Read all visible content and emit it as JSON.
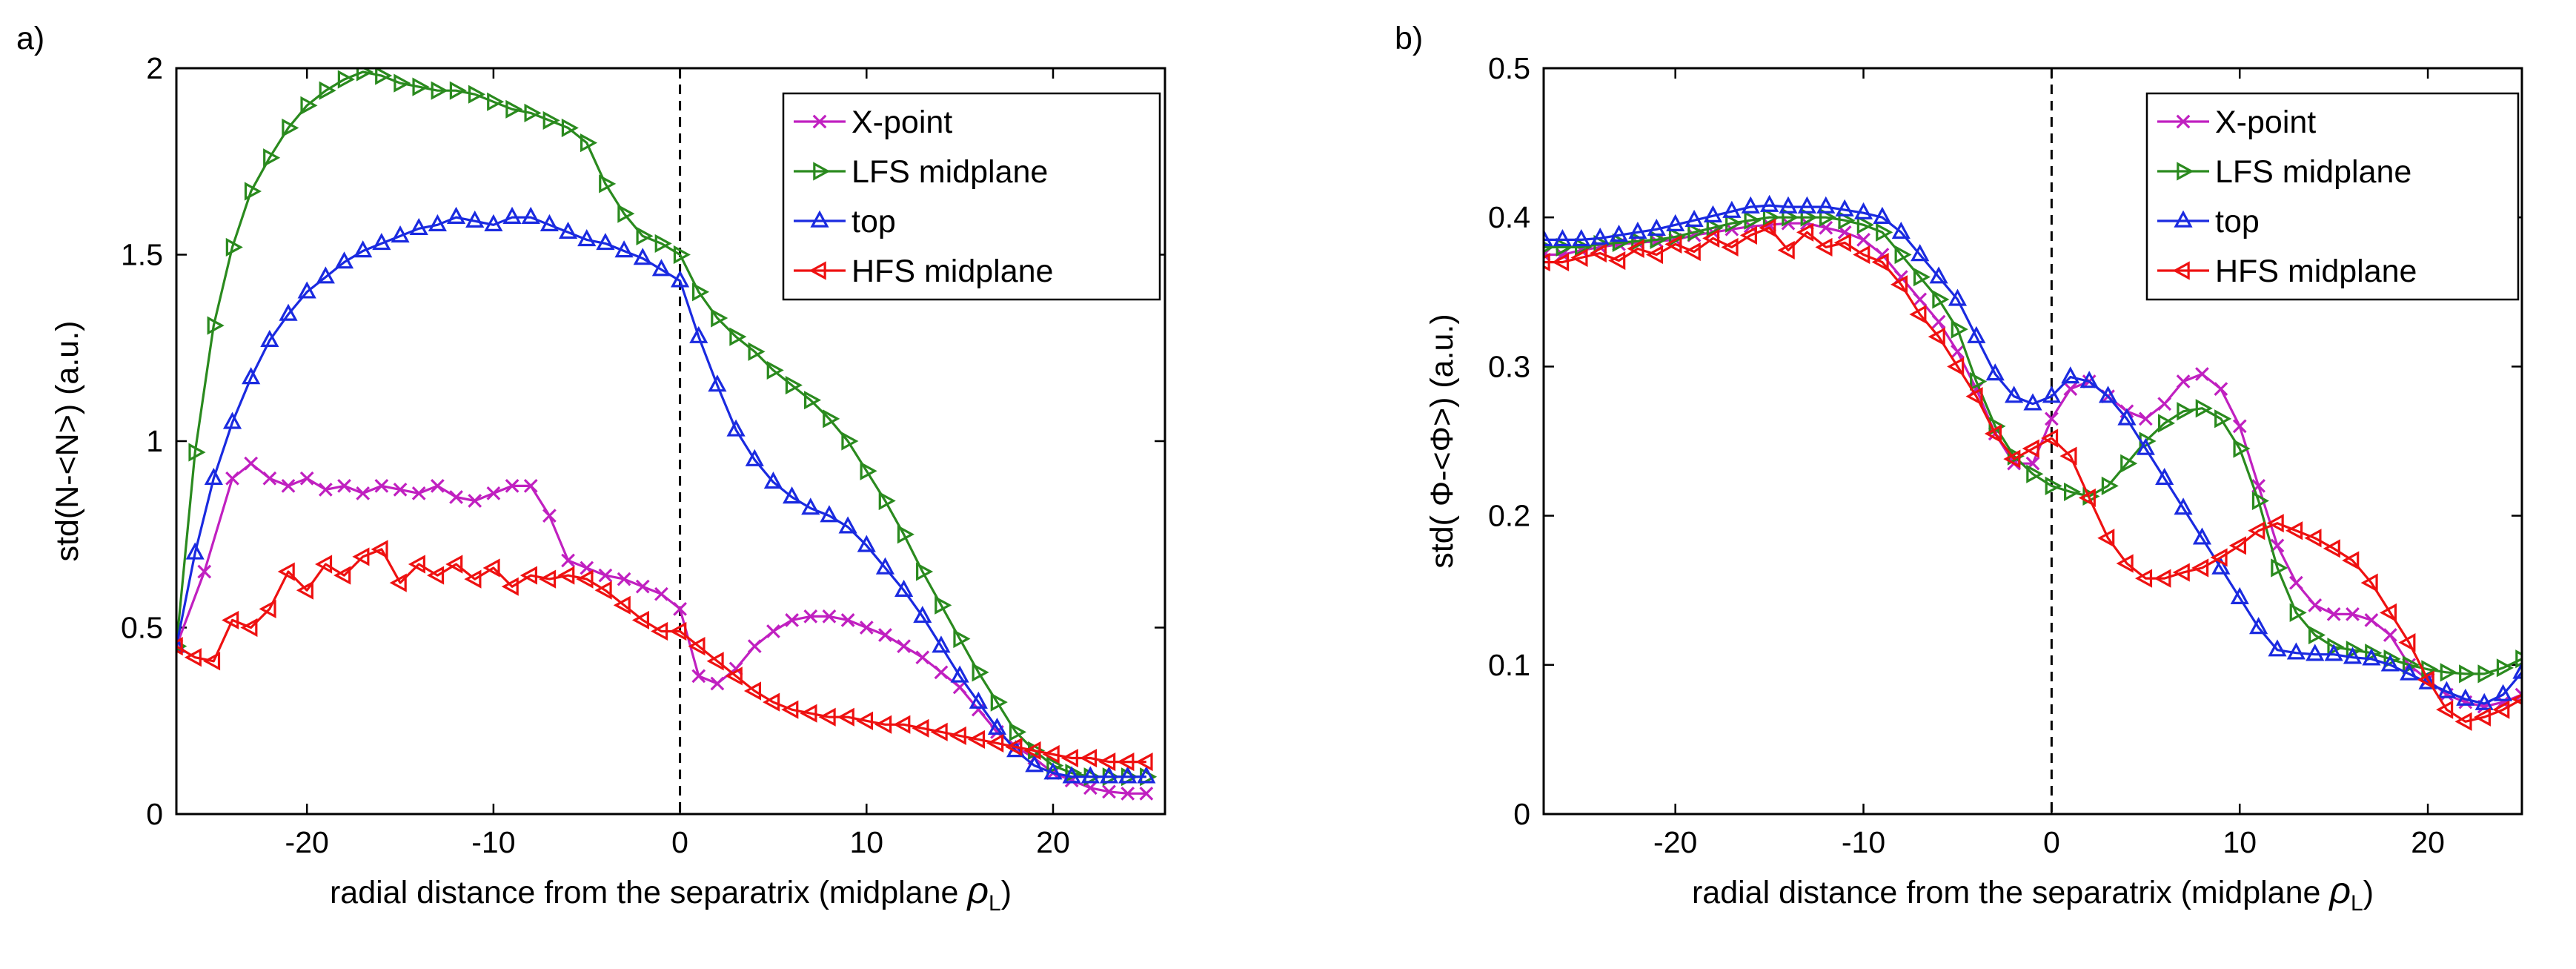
{
  "chart_data": [
    {
      "type": "line",
      "panel_label": "a)",
      "xlabel": "radial distance from the separatrix (midplane ",
      "xlabel_symbol": "ρ",
      "xlabel_sub": "L",
      "xlabel_end": ")",
      "ylabel": "std(N-<N>)  (a.u.)",
      "xlim": [
        -27,
        26
      ],
      "ylim": [
        0,
        2
      ],
      "xticks": [
        -20,
        -10,
        0,
        10,
        20
      ],
      "yticks": [
        0,
        0.5,
        1,
        1.5,
        2
      ],
      "ytick_labels": [
        "0",
        "0.5",
        "1",
        "1.5",
        "2"
      ],
      "separatrix_x": 0,
      "legend_position": "top-right",
      "series": [
        {
          "name": "X-point",
          "color": "#c020c0",
          "marker": "x",
          "x": [
            -27,
            -25.5,
            -24,
            -23,
            -22,
            -21,
            -20,
            -19,
            -18,
            -17,
            -16,
            -15,
            -14,
            -13,
            -12,
            -11,
            -10,
            -9,
            -8,
            -7,
            -6,
            -5,
            -4,
            -3,
            -2,
            -1,
            0,
            1,
            2,
            3,
            4,
            5,
            6,
            7,
            8,
            9,
            10,
            11,
            12,
            13,
            14,
            15,
            16,
            17,
            18,
            19,
            20,
            21,
            22,
            23,
            24,
            25
          ],
          "y": [
            0.45,
            0.65,
            0.9,
            0.94,
            0.9,
            0.88,
            0.9,
            0.87,
            0.88,
            0.86,
            0.88,
            0.87,
            0.86,
            0.88,
            0.85,
            0.84,
            0.86,
            0.88,
            0.88,
            0.8,
            0.68,
            0.66,
            0.64,
            0.63,
            0.61,
            0.59,
            0.55,
            0.37,
            0.35,
            0.39,
            0.45,
            0.49,
            0.52,
            0.53,
            0.53,
            0.52,
            0.5,
            0.48,
            0.45,
            0.42,
            0.38,
            0.34,
            0.28,
            0.22,
            0.18,
            0.15,
            0.11,
            0.09,
            0.07,
            0.06,
            0.055,
            0.055
          ]
        },
        {
          "name": "LFS midplane",
          "color": "#2a8a1e",
          "marker": "triangle-right",
          "x": [
            -27,
            -26,
            -25,
            -24,
            -23,
            -22,
            -21,
            -20,
            -19,
            -18,
            -17,
            -16,
            -15,
            -14,
            -13,
            -12,
            -11,
            -10,
            -9,
            -8,
            -7,
            -6,
            -5,
            -4,
            -3,
            -2,
            -1,
            0,
            1,
            2,
            3,
            4,
            5,
            6,
            7,
            8,
            9,
            10,
            11,
            12,
            13,
            14,
            15,
            16,
            17,
            18,
            19,
            20,
            21,
            22,
            23,
            24,
            25
          ],
          "y": [
            0.45,
            0.97,
            1.31,
            1.52,
            1.67,
            1.76,
            1.84,
            1.9,
            1.94,
            1.97,
            1.99,
            1.98,
            1.96,
            1.95,
            1.94,
            1.94,
            1.93,
            1.91,
            1.89,
            1.88,
            1.86,
            1.84,
            1.8,
            1.69,
            1.61,
            1.55,
            1.53,
            1.5,
            1.4,
            1.33,
            1.28,
            1.24,
            1.19,
            1.15,
            1.11,
            1.06,
            1.0,
            0.92,
            0.84,
            0.75,
            0.65,
            0.56,
            0.47,
            0.38,
            0.3,
            0.22,
            0.17,
            0.13,
            0.11,
            0.1,
            0.1,
            0.1,
            0.1
          ]
        },
        {
          "name": "top",
          "color": "#1a2ae0",
          "marker": "triangle-up",
          "x": [
            -27,
            -26,
            -25,
            -24,
            -23,
            -22,
            -21,
            -20,
            -19,
            -18,
            -17,
            -16,
            -15,
            -14,
            -13,
            -12,
            -11,
            -10,
            -9,
            -8,
            -7,
            -6,
            -5,
            -4,
            -3,
            -2,
            -1,
            0,
            1,
            2,
            3,
            4,
            5,
            6,
            7,
            8,
            9,
            10,
            11,
            12,
            13,
            14,
            15,
            16,
            17,
            18,
            19,
            20,
            21,
            22,
            23,
            24,
            25
          ],
          "y": [
            0.45,
            0.7,
            0.9,
            1.05,
            1.17,
            1.27,
            1.34,
            1.4,
            1.44,
            1.48,
            1.51,
            1.53,
            1.55,
            1.57,
            1.58,
            1.6,
            1.59,
            1.58,
            1.6,
            1.6,
            1.58,
            1.56,
            1.54,
            1.53,
            1.51,
            1.49,
            1.46,
            1.43,
            1.28,
            1.15,
            1.03,
            0.95,
            0.89,
            0.85,
            0.82,
            0.8,
            0.77,
            0.72,
            0.66,
            0.6,
            0.53,
            0.45,
            0.37,
            0.3,
            0.23,
            0.17,
            0.13,
            0.11,
            0.1,
            0.1,
            0.1,
            0.1,
            0.1
          ]
        },
        {
          "name": "HFS midplane",
          "color": "#ee1111",
          "marker": "triangle-left",
          "x": [
            -27,
            -26,
            -25,
            -24,
            -23,
            -22,
            -21,
            -20,
            -19,
            -18,
            -17,
            -16,
            -15,
            -14,
            -13,
            -12,
            -11,
            -10,
            -9,
            -8,
            -7,
            -6,
            -5,
            -4,
            -3,
            -2,
            -1,
            0,
            1,
            2,
            3,
            4,
            5,
            6,
            7,
            8,
            9,
            10,
            11,
            12,
            13,
            14,
            15,
            16,
            17,
            18,
            19,
            20,
            21,
            22,
            23,
            24,
            25
          ],
          "y": [
            0.45,
            0.42,
            0.41,
            0.52,
            0.5,
            0.55,
            0.65,
            0.6,
            0.67,
            0.64,
            0.69,
            0.71,
            0.62,
            0.67,
            0.64,
            0.67,
            0.63,
            0.66,
            0.61,
            0.64,
            0.63,
            0.64,
            0.63,
            0.6,
            0.56,
            0.52,
            0.49,
            0.49,
            0.45,
            0.41,
            0.37,
            0.33,
            0.3,
            0.28,
            0.27,
            0.26,
            0.26,
            0.25,
            0.24,
            0.24,
            0.23,
            0.22,
            0.21,
            0.2,
            0.19,
            0.18,
            0.17,
            0.16,
            0.15,
            0.15,
            0.14,
            0.14,
            0.14
          ]
        }
      ]
    },
    {
      "type": "line",
      "panel_label": "b)",
      "xlabel": "radial distance from the separatrix (midplane ",
      "xlabel_symbol": "ρ",
      "xlabel_sub": "L",
      "xlabel_end": ")",
      "ylabel": "std( Φ-<Φ>)  (a.u.)",
      "xlim": [
        -27,
        25
      ],
      "ylim": [
        0,
        0.5
      ],
      "xticks": [
        -20,
        -10,
        0,
        10,
        20
      ],
      "yticks": [
        0,
        0.1,
        0.2,
        0.3,
        0.4,
        0.5
      ],
      "ytick_labels": [
        "0",
        "0.1",
        "0.2",
        "0.3",
        "0.4",
        "0.5"
      ],
      "separatrix_x": 0,
      "legend_position": "top-right",
      "series": [
        {
          "name": "X-point",
          "color": "#c020c0",
          "marker": "x",
          "x": [
            -27,
            -26,
            -25,
            -24,
            -23,
            -22,
            -21,
            -20,
            -19,
            -18,
            -17,
            -16,
            -15,
            -14,
            -13,
            -12,
            -11,
            -10,
            -9,
            -8,
            -7,
            -6,
            -5,
            -4,
            -3,
            -2,
            -1,
            0,
            1,
            2,
            3,
            4,
            5,
            6,
            7,
            8,
            9,
            10,
            11,
            12,
            13,
            14,
            15,
            16,
            17,
            18,
            19,
            20,
            21,
            22,
            23,
            24,
            25
          ],
          "y": [
            0.375,
            0.375,
            0.378,
            0.38,
            0.382,
            0.383,
            0.384,
            0.385,
            0.388,
            0.39,
            0.392,
            0.394,
            0.395,
            0.396,
            0.396,
            0.393,
            0.39,
            0.385,
            0.375,
            0.36,
            0.345,
            0.33,
            0.31,
            0.285,
            0.255,
            0.235,
            0.235,
            0.265,
            0.285,
            0.29,
            0.28,
            0.27,
            0.265,
            0.275,
            0.29,
            0.295,
            0.285,
            0.26,
            0.22,
            0.18,
            0.155,
            0.14,
            0.134,
            0.134,
            0.13,
            0.12,
            0.1,
            0.09,
            0.08,
            0.075,
            0.072,
            0.075,
            0.08
          ]
        },
        {
          "name": "LFS midplane",
          "color": "#2a8a1e",
          "marker": "triangle-right",
          "x": [
            -27,
            -26,
            -25,
            -24,
            -23,
            -22,
            -21,
            -20,
            -19,
            -18,
            -17,
            -16,
            -15,
            -14,
            -13,
            -12,
            -11,
            -10,
            -9,
            -8,
            -7,
            -6,
            -5,
            -4,
            -3,
            -2,
            -1,
            0,
            1,
            2,
            3,
            4,
            5,
            6,
            7,
            8,
            9,
            10,
            11,
            12,
            13,
            14,
            15,
            16,
            17,
            18,
            19,
            20,
            21,
            22,
            23,
            24,
            25
          ],
          "y": [
            0.38,
            0.38,
            0.38,
            0.382,
            0.383,
            0.384,
            0.385,
            0.387,
            0.39,
            0.393,
            0.396,
            0.398,
            0.4,
            0.4,
            0.4,
            0.4,
            0.398,
            0.395,
            0.39,
            0.375,
            0.36,
            0.345,
            0.325,
            0.29,
            0.26,
            0.24,
            0.228,
            0.22,
            0.216,
            0.213,
            0.22,
            0.235,
            0.25,
            0.262,
            0.27,
            0.272,
            0.265,
            0.245,
            0.21,
            0.165,
            0.135,
            0.12,
            0.112,
            0.11,
            0.108,
            0.104,
            0.1,
            0.097,
            0.095,
            0.094,
            0.094,
            0.098,
            0.104
          ]
        },
        {
          "name": "top",
          "color": "#1a2ae0",
          "marker": "triangle-up",
          "x": [
            -27,
            -26,
            -25,
            -24,
            -23,
            -22,
            -21,
            -20,
            -19,
            -18,
            -17,
            -16,
            -15,
            -14,
            -13,
            -12,
            -11,
            -10,
            -9,
            -8,
            -7,
            -6,
            -5,
            -4,
            -3,
            -2,
            -1,
            0,
            1,
            2,
            3,
            4,
            5,
            6,
            7,
            8,
            9,
            10,
            11,
            12,
            13,
            14,
            15,
            16,
            17,
            18,
            19,
            20,
            21,
            22,
            23,
            24,
            25
          ],
          "y": [
            0.385,
            0.385,
            0.385,
            0.386,
            0.388,
            0.39,
            0.392,
            0.395,
            0.398,
            0.401,
            0.404,
            0.407,
            0.408,
            0.407,
            0.407,
            0.407,
            0.405,
            0.403,
            0.4,
            0.39,
            0.375,
            0.36,
            0.345,
            0.32,
            0.295,
            0.28,
            0.275,
            0.28,
            0.293,
            0.29,
            0.28,
            0.265,
            0.245,
            0.225,
            0.205,
            0.185,
            0.165,
            0.145,
            0.125,
            0.11,
            0.108,
            0.107,
            0.107,
            0.105,
            0.104,
            0.1,
            0.094,
            0.088,
            0.082,
            0.077,
            0.074,
            0.08,
            0.095
          ]
        },
        {
          "name": "HFS midplane",
          "color": "#ee1111",
          "marker": "triangle-left",
          "x": [
            -27,
            -26,
            -25,
            -24,
            -23,
            -22,
            -21,
            -20,
            -19,
            -18,
            -17,
            -16,
            -15,
            -14,
            -13,
            -12,
            -11,
            -10,
            -9,
            -8,
            -7,
            -6,
            -5,
            -4,
            -3,
            -2,
            -1,
            0,
            1,
            2,
            3,
            4,
            5,
            6,
            7,
            8,
            9,
            10,
            11,
            12,
            13,
            14,
            15,
            16,
            17,
            18,
            19,
            20,
            21,
            22,
            23,
            24,
            25
          ],
          "y": [
            0.37,
            0.37,
            0.373,
            0.376,
            0.371,
            0.379,
            0.375,
            0.382,
            0.377,
            0.386,
            0.38,
            0.388,
            0.393,
            0.378,
            0.39,
            0.38,
            0.383,
            0.375,
            0.37,
            0.355,
            0.335,
            0.32,
            0.3,
            0.28,
            0.255,
            0.238,
            0.245,
            0.252,
            0.24,
            0.212,
            0.185,
            0.168,
            0.158,
            0.158,
            0.162,
            0.165,
            0.172,
            0.18,
            0.19,
            0.195,
            0.19,
            0.185,
            0.178,
            0.17,
            0.155,
            0.135,
            0.115,
            0.09,
            0.07,
            0.062,
            0.065,
            0.07,
            0.077
          ]
        }
      ]
    }
  ]
}
